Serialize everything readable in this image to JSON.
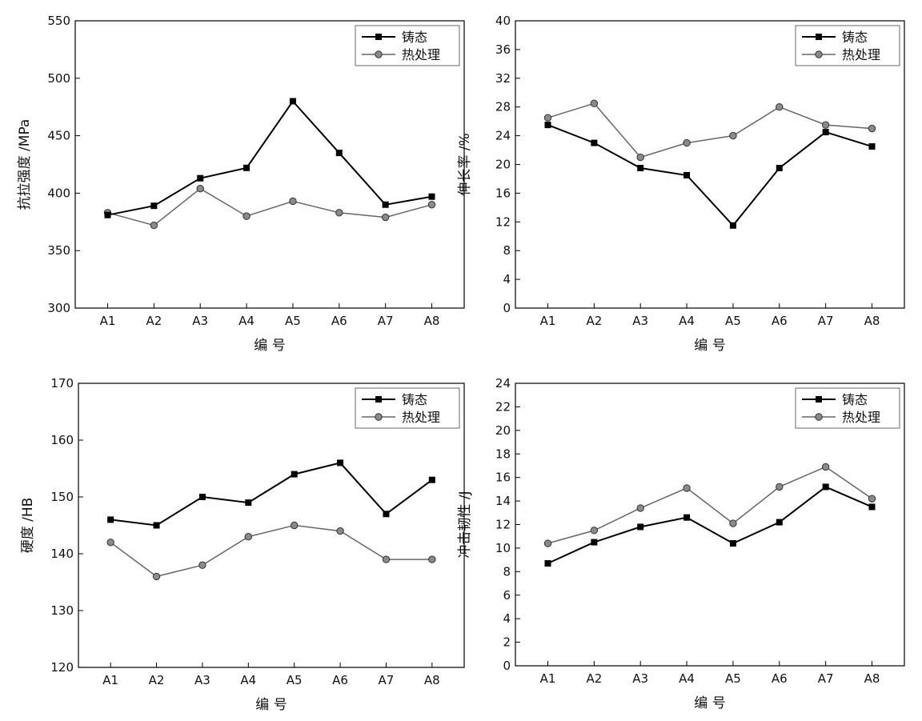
{
  "chart_data": [
    {
      "type": "line",
      "categories": [
        "A1",
        "A2",
        "A3",
        "A4",
        "A5",
        "A6",
        "A7",
        "A8"
      ],
      "series": [
        {
          "name": "铸态",
          "marker": "square",
          "color": "#000000",
          "values": [
            381,
            389,
            413,
            422,
            480,
            435,
            390,
            397
          ]
        },
        {
          "name": "热处理",
          "marker": "circle",
          "color": "#666666",
          "values": [
            383,
            372,
            404,
            380,
            393,
            383,
            379,
            390
          ]
        }
      ],
      "xlabel": "编 号",
      "ylabel": "抗拉强度 /MPa",
      "ylim": [
        300,
        550
      ],
      "yticks": [
        300,
        350,
        400,
        450,
        500,
        550
      ],
      "legend": "top-right",
      "grid": false
    },
    {
      "type": "line",
      "categories": [
        "A1",
        "A2",
        "A3",
        "A4",
        "A5",
        "A6",
        "A7",
        "A8"
      ],
      "series": [
        {
          "name": "铸态",
          "marker": "square",
          "color": "#000000",
          "values": [
            25.5,
            23.0,
            19.5,
            18.5,
            11.5,
            19.5,
            24.5,
            22.5
          ]
        },
        {
          "name": "热处理",
          "marker": "circle",
          "color": "#666666",
          "values": [
            26.5,
            28.5,
            21.0,
            23.0,
            24.0,
            28.0,
            25.5,
            25.0
          ]
        }
      ],
      "xlabel": "编 号",
      "ylabel": "伸长率 /%",
      "ylim": [
        0,
        40
      ],
      "yticks": [
        0,
        4,
        8,
        12,
        16,
        20,
        24,
        28,
        32,
        36,
        40
      ],
      "legend": "top-right",
      "grid": false
    },
    {
      "type": "line",
      "categories": [
        "A1",
        "A2",
        "A3",
        "A4",
        "A5",
        "A6",
        "A7",
        "A8"
      ],
      "series": [
        {
          "name": "铸态",
          "marker": "square",
          "color": "#000000",
          "values": [
            146,
            145,
            150,
            149,
            154,
            156,
            147,
            153
          ]
        },
        {
          "name": "热处理",
          "marker": "circle",
          "color": "#666666",
          "values": [
            142,
            136,
            138,
            143,
            145,
            144,
            139,
            139
          ]
        }
      ],
      "xlabel": "编 号",
      "ylabel": "硬度 /HB",
      "ylim": [
        120,
        170
      ],
      "yticks": [
        120,
        130,
        140,
        150,
        160,
        170
      ],
      "legend": "top-right",
      "grid": false
    },
    {
      "type": "line",
      "categories": [
        "A1",
        "A2",
        "A3",
        "A4",
        "A5",
        "A6",
        "A7",
        "A8"
      ],
      "series": [
        {
          "name": "铸态",
          "marker": "square",
          "color": "#000000",
          "values": [
            8.7,
            10.5,
            11.8,
            12.6,
            10.4,
            12.2,
            15.2,
            13.5
          ]
        },
        {
          "name": "热处理",
          "marker": "circle",
          "color": "#666666",
          "values": [
            10.4,
            11.5,
            13.4,
            15.1,
            12.1,
            15.2,
            16.9,
            14.2
          ]
        }
      ],
      "xlabel": "编 号",
      "ylabel": "冲击韧性 /J",
      "ylim": [
        0,
        24
      ],
      "yticks": [
        0,
        2,
        4,
        6,
        8,
        10,
        12,
        14,
        16,
        18,
        20,
        22,
        24
      ],
      "legend": "top-right",
      "grid": false
    }
  ]
}
